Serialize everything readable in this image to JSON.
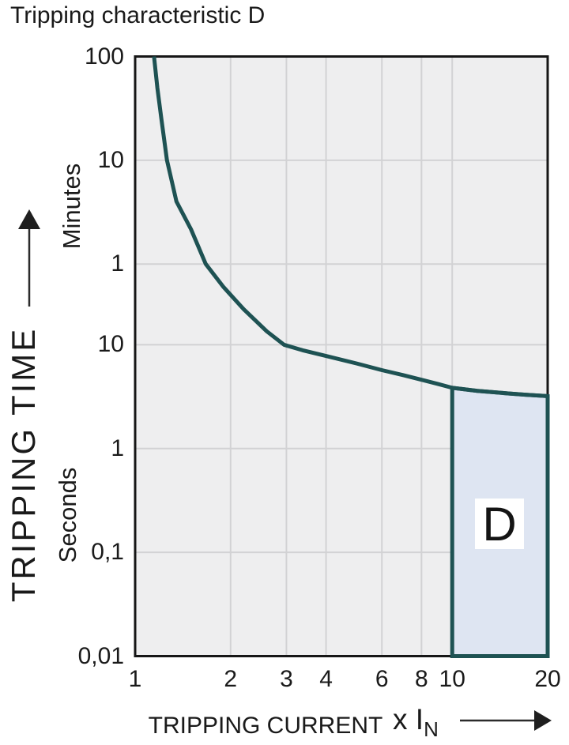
{
  "title": "Tripping characteristic D",
  "colors": {
    "curve": "#1e5253",
    "region_fill": "#dee5f2",
    "plot_bg": "#eeeeef",
    "grid": "#d2d2d4",
    "border": "#161616",
    "text": "#1a1a1a",
    "arrow": "#2b2b2b",
    "region_label_bg": "#ffffff"
  },
  "y_axis": {
    "title": "TRIPPING TIME",
    "unit_top": "Minutes",
    "unit_bottom": "Seconds",
    "tick_labels": [
      "100",
      "10",
      "1",
      "10",
      "1",
      "0,1",
      "0,01"
    ]
  },
  "x_axis": {
    "title": "TRIPPING CURRENT",
    "unit": "x I",
    "unit_sub": "N",
    "tick_labels": [
      "1",
      "2",
      "3",
      "4",
      "6",
      "8",
      "10",
      "20"
    ]
  },
  "chart_data": {
    "type": "line",
    "title": "Tripping characteristic D",
    "xlabel": "TRIPPING CURRENT (x IN)",
    "ylabel": "TRIPPING TIME",
    "x_scale": "log",
    "y_scale": "log",
    "x_range": [
      1,
      20
    ],
    "x_ticks": [
      1,
      2,
      3,
      4,
      6,
      8,
      10,
      20
    ],
    "y_range_seconds": [
      0.01,
      6000
    ],
    "y_ticks_seconds": [
      6000,
      600,
      60,
      10,
      1,
      0.1,
      0.01
    ],
    "y_tick_units": [
      "minutes",
      "minutes",
      "minutes",
      "seconds",
      "seconds",
      "seconds",
      "seconds"
    ],
    "grid": true,
    "legend": false,
    "series": [
      {
        "name": "Tripping curve D",
        "points_x_seconds": [
          [
            1.147,
            6000
          ],
          [
            1.175,
            3000
          ],
          [
            1.21,
            1500
          ],
          [
            1.26,
            600
          ],
          [
            1.35,
            240
          ],
          [
            1.5,
            130
          ],
          [
            1.67,
            60
          ],
          [
            1.9,
            36
          ],
          [
            2.2,
            22
          ],
          [
            2.6,
            13.5
          ],
          [
            2.95,
            10
          ],
          [
            3.4,
            8.8
          ],
          [
            4,
            7.8
          ],
          [
            5,
            6.6
          ],
          [
            6,
            5.7
          ],
          [
            7,
            5.1
          ],
          [
            8,
            4.6
          ],
          [
            9,
            4.2
          ],
          [
            10,
            3.85
          ],
          [
            12,
            3.6
          ],
          [
            15,
            3.4
          ],
          [
            17,
            3.3
          ],
          [
            20,
            3.2
          ]
        ]
      }
    ],
    "region": {
      "label": "D",
      "x_from": 10,
      "x_to": 20,
      "bottom_seconds": 0.01,
      "top_follows": "curve"
    }
  }
}
